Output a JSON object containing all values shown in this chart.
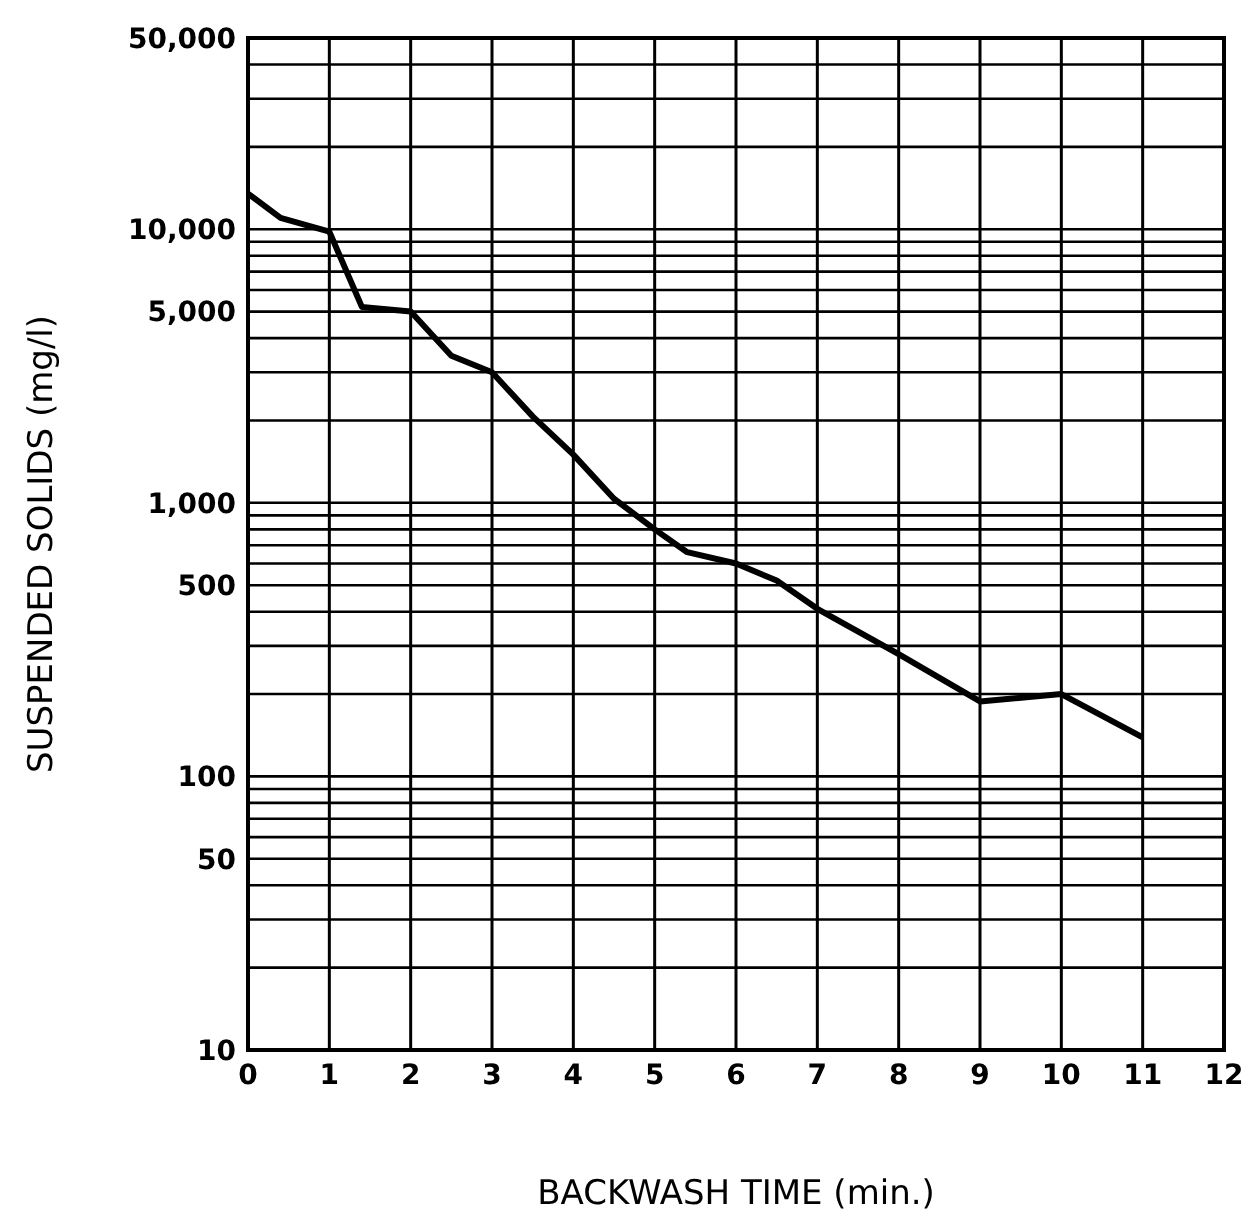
{
  "chart_data": {
    "type": "line",
    "xlabel": "BACKWASH TIME  (min.)",
    "ylabel": "SUSPENDED SOLIDS (mg/l)",
    "log": "y",
    "grid": true,
    "marker": "none",
    "line_style": "solid",
    "x": [
      0,
      0.4,
      1,
      1.4,
      2,
      2.5,
      3,
      3.5,
      4,
      4.5,
      5,
      5.4,
      6,
      6.5,
      7,
      8,
      9,
      10,
      11
    ],
    "series": [
      {
        "color": "#000000",
        "values": [
          13500,
          11000,
          9800,
          5200,
          5000,
          3450,
          3000,
          2070,
          1500,
          1035,
          800,
          660,
          600,
          520,
          410,
          280,
          188,
          200,
          139
        ]
      }
    ],
    "xlim": [
      0,
      12
    ],
    "xticks": [
      0,
      1,
      2,
      3,
      4,
      5,
      6,
      7,
      8,
      9,
      10,
      11,
      12
    ],
    "ylim": [
      10,
      50000
    ],
    "yticks": [
      {
        "value": 10,
        "label": "10"
      },
      {
        "value": 20,
        "label": null
      },
      {
        "value": 30,
        "label": null
      },
      {
        "value": 40,
        "label": null
      },
      {
        "value": 50,
        "label": "50"
      },
      {
        "value": 60,
        "label": null
      },
      {
        "value": 70,
        "label": null
      },
      {
        "value": 80,
        "label": null
      },
      {
        "value": 90,
        "label": null
      },
      {
        "value": 100,
        "label": "100"
      },
      {
        "value": 200,
        "label": null
      },
      {
        "value": 300,
        "label": null
      },
      {
        "value": 400,
        "label": null
      },
      {
        "value": 500,
        "label": "500"
      },
      {
        "value": 600,
        "label": null
      },
      {
        "value": 700,
        "label": null
      },
      {
        "value": 800,
        "label": null
      },
      {
        "value": 900,
        "label": null
      },
      {
        "value": 1000,
        "label": "1,000"
      },
      {
        "value": 2000,
        "label": null
      },
      {
        "value": 3000,
        "label": null
      },
      {
        "value": 4000,
        "label": null
      },
      {
        "value": 5000,
        "label": "5,000"
      },
      {
        "value": 6000,
        "label": null
      },
      {
        "value": 7000,
        "label": null
      },
      {
        "value": 8000,
        "label": null
      },
      {
        "value": 9000,
        "label": null
      },
      {
        "value": 10000,
        "label": "10,000"
      },
      {
        "value": 20000,
        "label": null
      },
      {
        "value": 30000,
        "label": null
      },
      {
        "value": 40000,
        "label": null
      },
      {
        "value": 50000,
        "label": "50,000"
      }
    ]
  }
}
